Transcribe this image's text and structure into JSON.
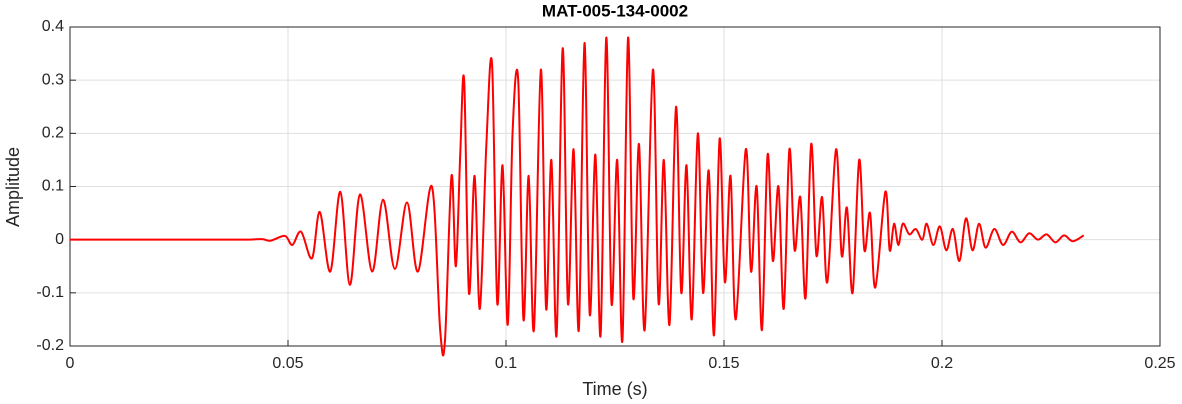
{
  "chart_data": {
    "type": "line",
    "title": "MAT-005-134-0002",
    "xlabel": "Time (s)",
    "ylabel": "Amplitude",
    "xlim": [
      0,
      0.25
    ],
    "xticks": [
      0,
      0.05,
      0.1,
      0.15,
      0.2,
      0.25
    ],
    "ylim": [
      -0.2,
      0.4
    ],
    "yticks": [
      -0.2,
      -0.1,
      0,
      0.1,
      0.2,
      0.3,
      0.4
    ],
    "grid": true,
    "series": [
      {
        "color": "#ff0000",
        "x": [
          0,
          0.01,
          0.02,
          0.03,
          0.04,
          0.044,
          0.046,
          0.0493,
          0.051,
          0.053,
          0.0555,
          0.0573,
          0.0597,
          0.062,
          0.0642,
          0.0665,
          0.0693,
          0.0718,
          0.0745,
          0.0773,
          0.0798,
          0.083,
          0.0849,
          0.086,
          0.0875,
          0.0885,
          0.0895,
          0.0904,
          0.0915,
          0.0928,
          0.094,
          0.0955,
          0.0968,
          0.098,
          0.0992,
          0.1004,
          0.1015,
          0.1028,
          0.104,
          0.1052,
          0.1064,
          0.108,
          0.1092,
          0.1104,
          0.1116,
          0.113,
          0.1142,
          0.1155,
          0.1167,
          0.118,
          0.1192,
          0.1205,
          0.1217,
          0.123,
          0.1242,
          0.1255,
          0.1267,
          0.128,
          0.1292,
          0.1305,
          0.1318,
          0.1337,
          0.135,
          0.1362,
          0.1375,
          0.139,
          0.1402,
          0.1414,
          0.1426,
          0.144,
          0.1452,
          0.1465,
          0.1477,
          0.149,
          0.1502,
          0.1515,
          0.1527,
          0.155,
          0.1562,
          0.1575,
          0.1587,
          0.16,
          0.1612,
          0.1625,
          0.1637,
          0.165,
          0.1662,
          0.1675,
          0.1687,
          0.17,
          0.1712,
          0.1725,
          0.1737,
          0.1757,
          0.177,
          0.1782,
          0.1795,
          0.181,
          0.1822,
          0.1835,
          0.1847,
          0.187,
          0.188,
          0.189,
          0.19,
          0.191,
          0.1925,
          0.194,
          0.1955,
          0.1965,
          0.198,
          0.1995,
          0.201,
          0.2025,
          0.204,
          0.2055,
          0.207,
          0.2085,
          0.21,
          0.212,
          0.214,
          0.216,
          0.218,
          0.22,
          0.222,
          0.224,
          0.226,
          0.228,
          0.23,
          0.2325
        ],
        "values": [
          0,
          0,
          0,
          0,
          0,
          0.001,
          -0.002,
          0.007,
          -0.01,
          0.015,
          -0.035,
          0.052,
          -0.06,
          0.09,
          -0.085,
          0.085,
          -0.06,
          0.075,
          -0.055,
          0.07,
          -0.06,
          0.1,
          -0.17,
          -0.19,
          0.12,
          -0.05,
          0.16,
          0.3,
          -0.1,
          0.12,
          -0.13,
          0.18,
          0.33,
          -0.12,
          0.14,
          -0.16,
          0.2,
          0.3,
          -0.15,
          0.12,
          -0.17,
          0.32,
          -0.13,
          0.15,
          -0.18,
          0.36,
          -0.12,
          0.17,
          -0.17,
          0.37,
          -0.14,
          0.16,
          -0.18,
          0.38,
          -0.12,
          0.15,
          -0.19,
          0.38,
          -0.11,
          0.18,
          -0.17,
          0.32,
          -0.12,
          0.15,
          -0.16,
          0.25,
          -0.1,
          0.14,
          -0.15,
          0.2,
          -0.1,
          0.13,
          -0.18,
          0.19,
          -0.08,
          0.12,
          -0.15,
          0.17,
          -0.06,
          0.1,
          -0.17,
          0.16,
          -0.04,
          0.1,
          -0.13,
          0.17,
          -0.02,
          0.08,
          -0.11,
          0.18,
          -0.03,
          0.08,
          -0.08,
          0.17,
          -0.03,
          0.06,
          -0.1,
          0.15,
          -0.02,
          0.05,
          -0.09,
          0.09,
          -0.02,
          0.03,
          -0.01,
          0.03,
          0.01,
          0.02,
          0,
          0.03,
          -0.01,
          0.025,
          -0.02,
          0.02,
          -0.04,
          0.04,
          -0.02,
          0.03,
          -0.015,
          0.02,
          -0.01,
          0.015,
          -0.005,
          0.012,
          0,
          0.01,
          -0.005,
          0.008,
          -0.003,
          0.008
        ]
      }
    ]
  }
}
